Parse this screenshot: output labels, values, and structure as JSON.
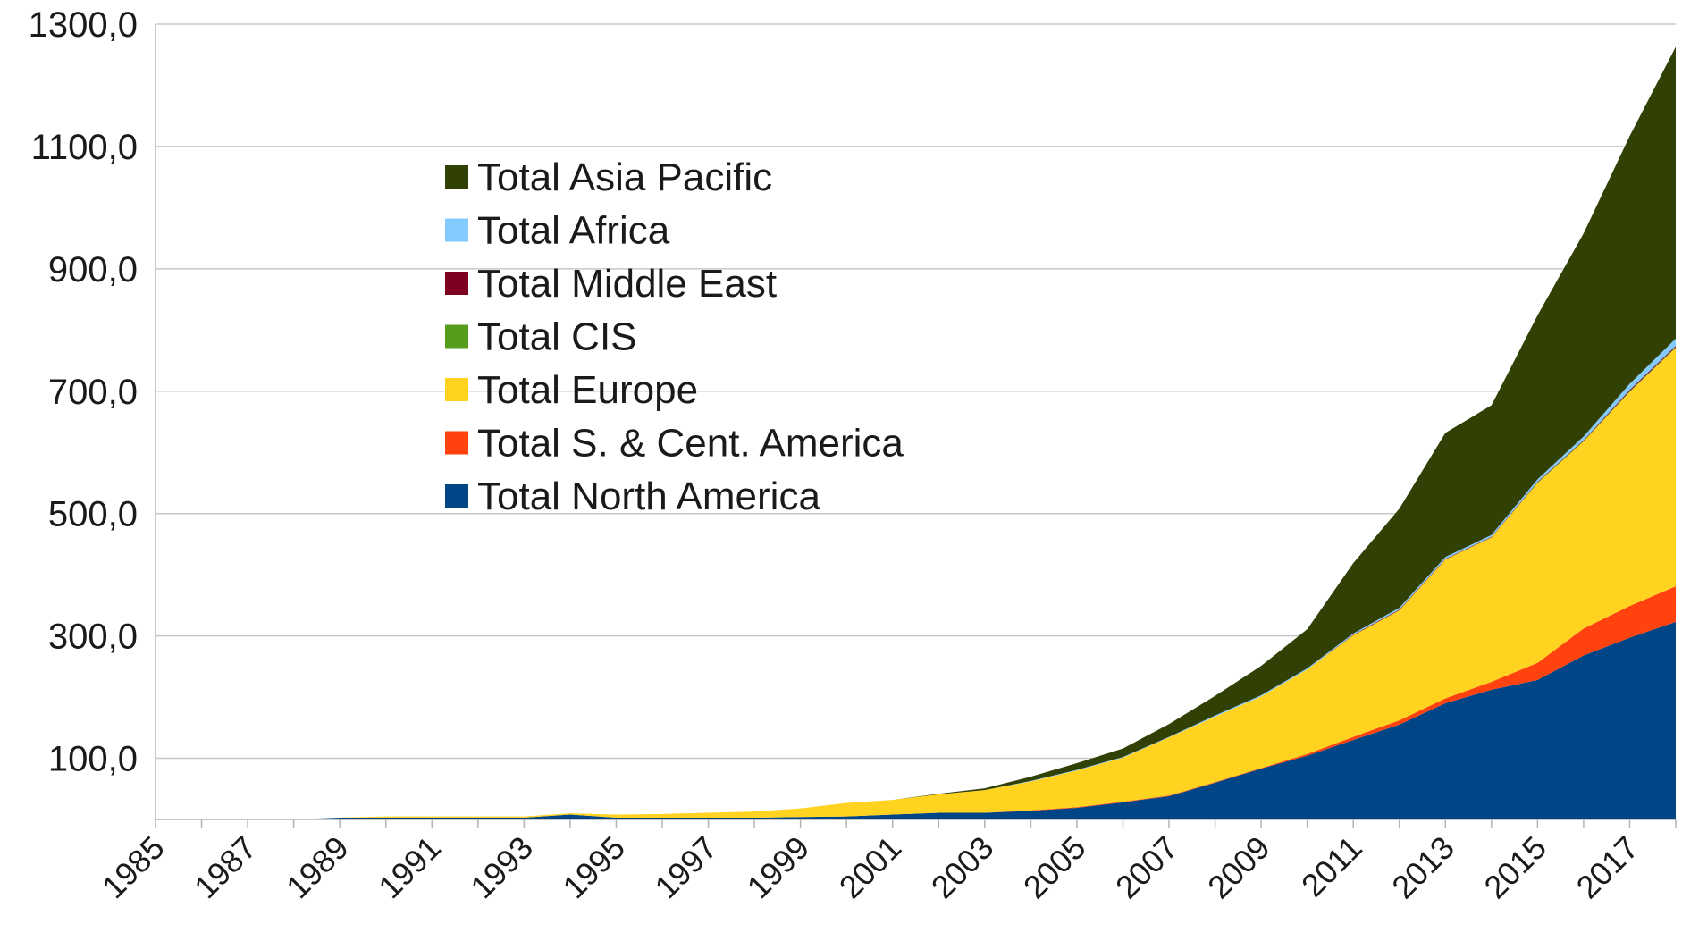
{
  "chart_data": {
    "type": "area",
    "stacked": true,
    "grid": true,
    "legend_position": "upper-left (inside plot area)",
    "ylim": [
      0,
      1300
    ],
    "xlim": [
      1985,
      2018
    ],
    "y_ticks": [
      "100,0",
      "300,0",
      "500,0",
      "700,0",
      "900,0",
      "1100,0",
      "1300,0"
    ],
    "y_tick_values": [
      100,
      300,
      500,
      700,
      900,
      1100,
      1300
    ],
    "x_tick_labels": [
      "1985",
      "1987",
      "1989",
      "1991",
      "1993",
      "1995",
      "1997",
      "1999",
      "2001",
      "2003",
      "2005",
      "2007",
      "2009",
      "2011",
      "2013",
      "2015",
      "2017"
    ],
    "x": [
      1985,
      1986,
      1987,
      1988,
      1989,
      1990,
      1991,
      1992,
      1993,
      1994,
      1995,
      1996,
      1997,
      1998,
      1999,
      2000,
      2001,
      2002,
      2003,
      2004,
      2005,
      2006,
      2007,
      2008,
      2009,
      2010,
      2011,
      2012,
      2013,
      2014,
      2015,
      2016,
      2017,
      2018
    ],
    "series": [
      {
        "name": "Total North America",
        "color": "#004586",
        "values": [
          0,
          0,
          0,
          0,
          3,
          3,
          3,
          3,
          3,
          8,
          3,
          3,
          3,
          3,
          4,
          5,
          8,
          11,
          11,
          14,
          19,
          28,
          38,
          60,
          83,
          104,
          130,
          155,
          190,
          212,
          228,
          268,
          297,
          323
        ]
      },
      {
        "name": "Total S. & Cent. America",
        "color": "#ff420e",
        "values": [
          0,
          0,
          0,
          0,
          0,
          0,
          0,
          0,
          0,
          0,
          0,
          0,
          0,
          0,
          0,
          0,
          0,
          0,
          0,
          1,
          1,
          1,
          1,
          1,
          1,
          3,
          5,
          7,
          8,
          13,
          28,
          44,
          52,
          58
        ]
      },
      {
        "name": "Total Europe",
        "color": "#ffd320",
        "values": [
          0,
          0,
          0,
          0,
          0,
          2,
          2,
          2,
          2,
          2,
          5,
          6,
          8,
          10,
          14,
          22,
          24,
          30,
          37,
          47,
          60,
          72,
          95,
          107,
          117,
          138,
          166,
          180,
          227,
          236,
          294,
          306,
          350,
          390
        ]
      },
      {
        "name": "Total CIS",
        "color": "#579d1c",
        "values": [
          0,
          0,
          0,
          0,
          0,
          0,
          0,
          0,
          0,
          0,
          0,
          0,
          0,
          0,
          0,
          0,
          0,
          0,
          0,
          0,
          0,
          0,
          0,
          0,
          0,
          0,
          0,
          0,
          0,
          0,
          1,
          1,
          1,
          1
        ]
      },
      {
        "name": "Total Middle East",
        "color": "#7e0021",
        "values": [
          0,
          0,
          0,
          0,
          0,
          0,
          0,
          0,
          0,
          0,
          0,
          0,
          0,
          0,
          0,
          0,
          0,
          0,
          0,
          0,
          0,
          0,
          0,
          0,
          0,
          0,
          1,
          1,
          1,
          1,
          1,
          1,
          2,
          2
        ]
      },
      {
        "name": "Total Africa",
        "color": "#83caff",
        "values": [
          0,
          0,
          0,
          0,
          0,
          0,
          0,
          0,
          0,
          0,
          0,
          0,
          0,
          0,
          0,
          0,
          0,
          0,
          0,
          1,
          1,
          1,
          1,
          2,
          2,
          2,
          2,
          3,
          3,
          3,
          4,
          6,
          10,
          12
        ]
      },
      {
        "name": "Total Asia Pacific",
        "color": "#314004",
        "values": [
          0,
          0,
          0,
          0,
          0,
          0,
          0,
          0,
          0,
          0,
          0,
          0,
          0,
          0,
          0,
          0,
          0,
          1,
          3,
          7,
          11,
          14,
          21,
          32,
          48,
          64,
          115,
          162,
          203,
          212,
          268,
          332,
          405,
          477
        ]
      }
    ],
    "legend_order": [
      "Total Asia Pacific",
      "Total Africa",
      "Total Middle East",
      "Total CIS",
      "Total Europe",
      "Total S. & Cent. America",
      "Total North America"
    ]
  }
}
